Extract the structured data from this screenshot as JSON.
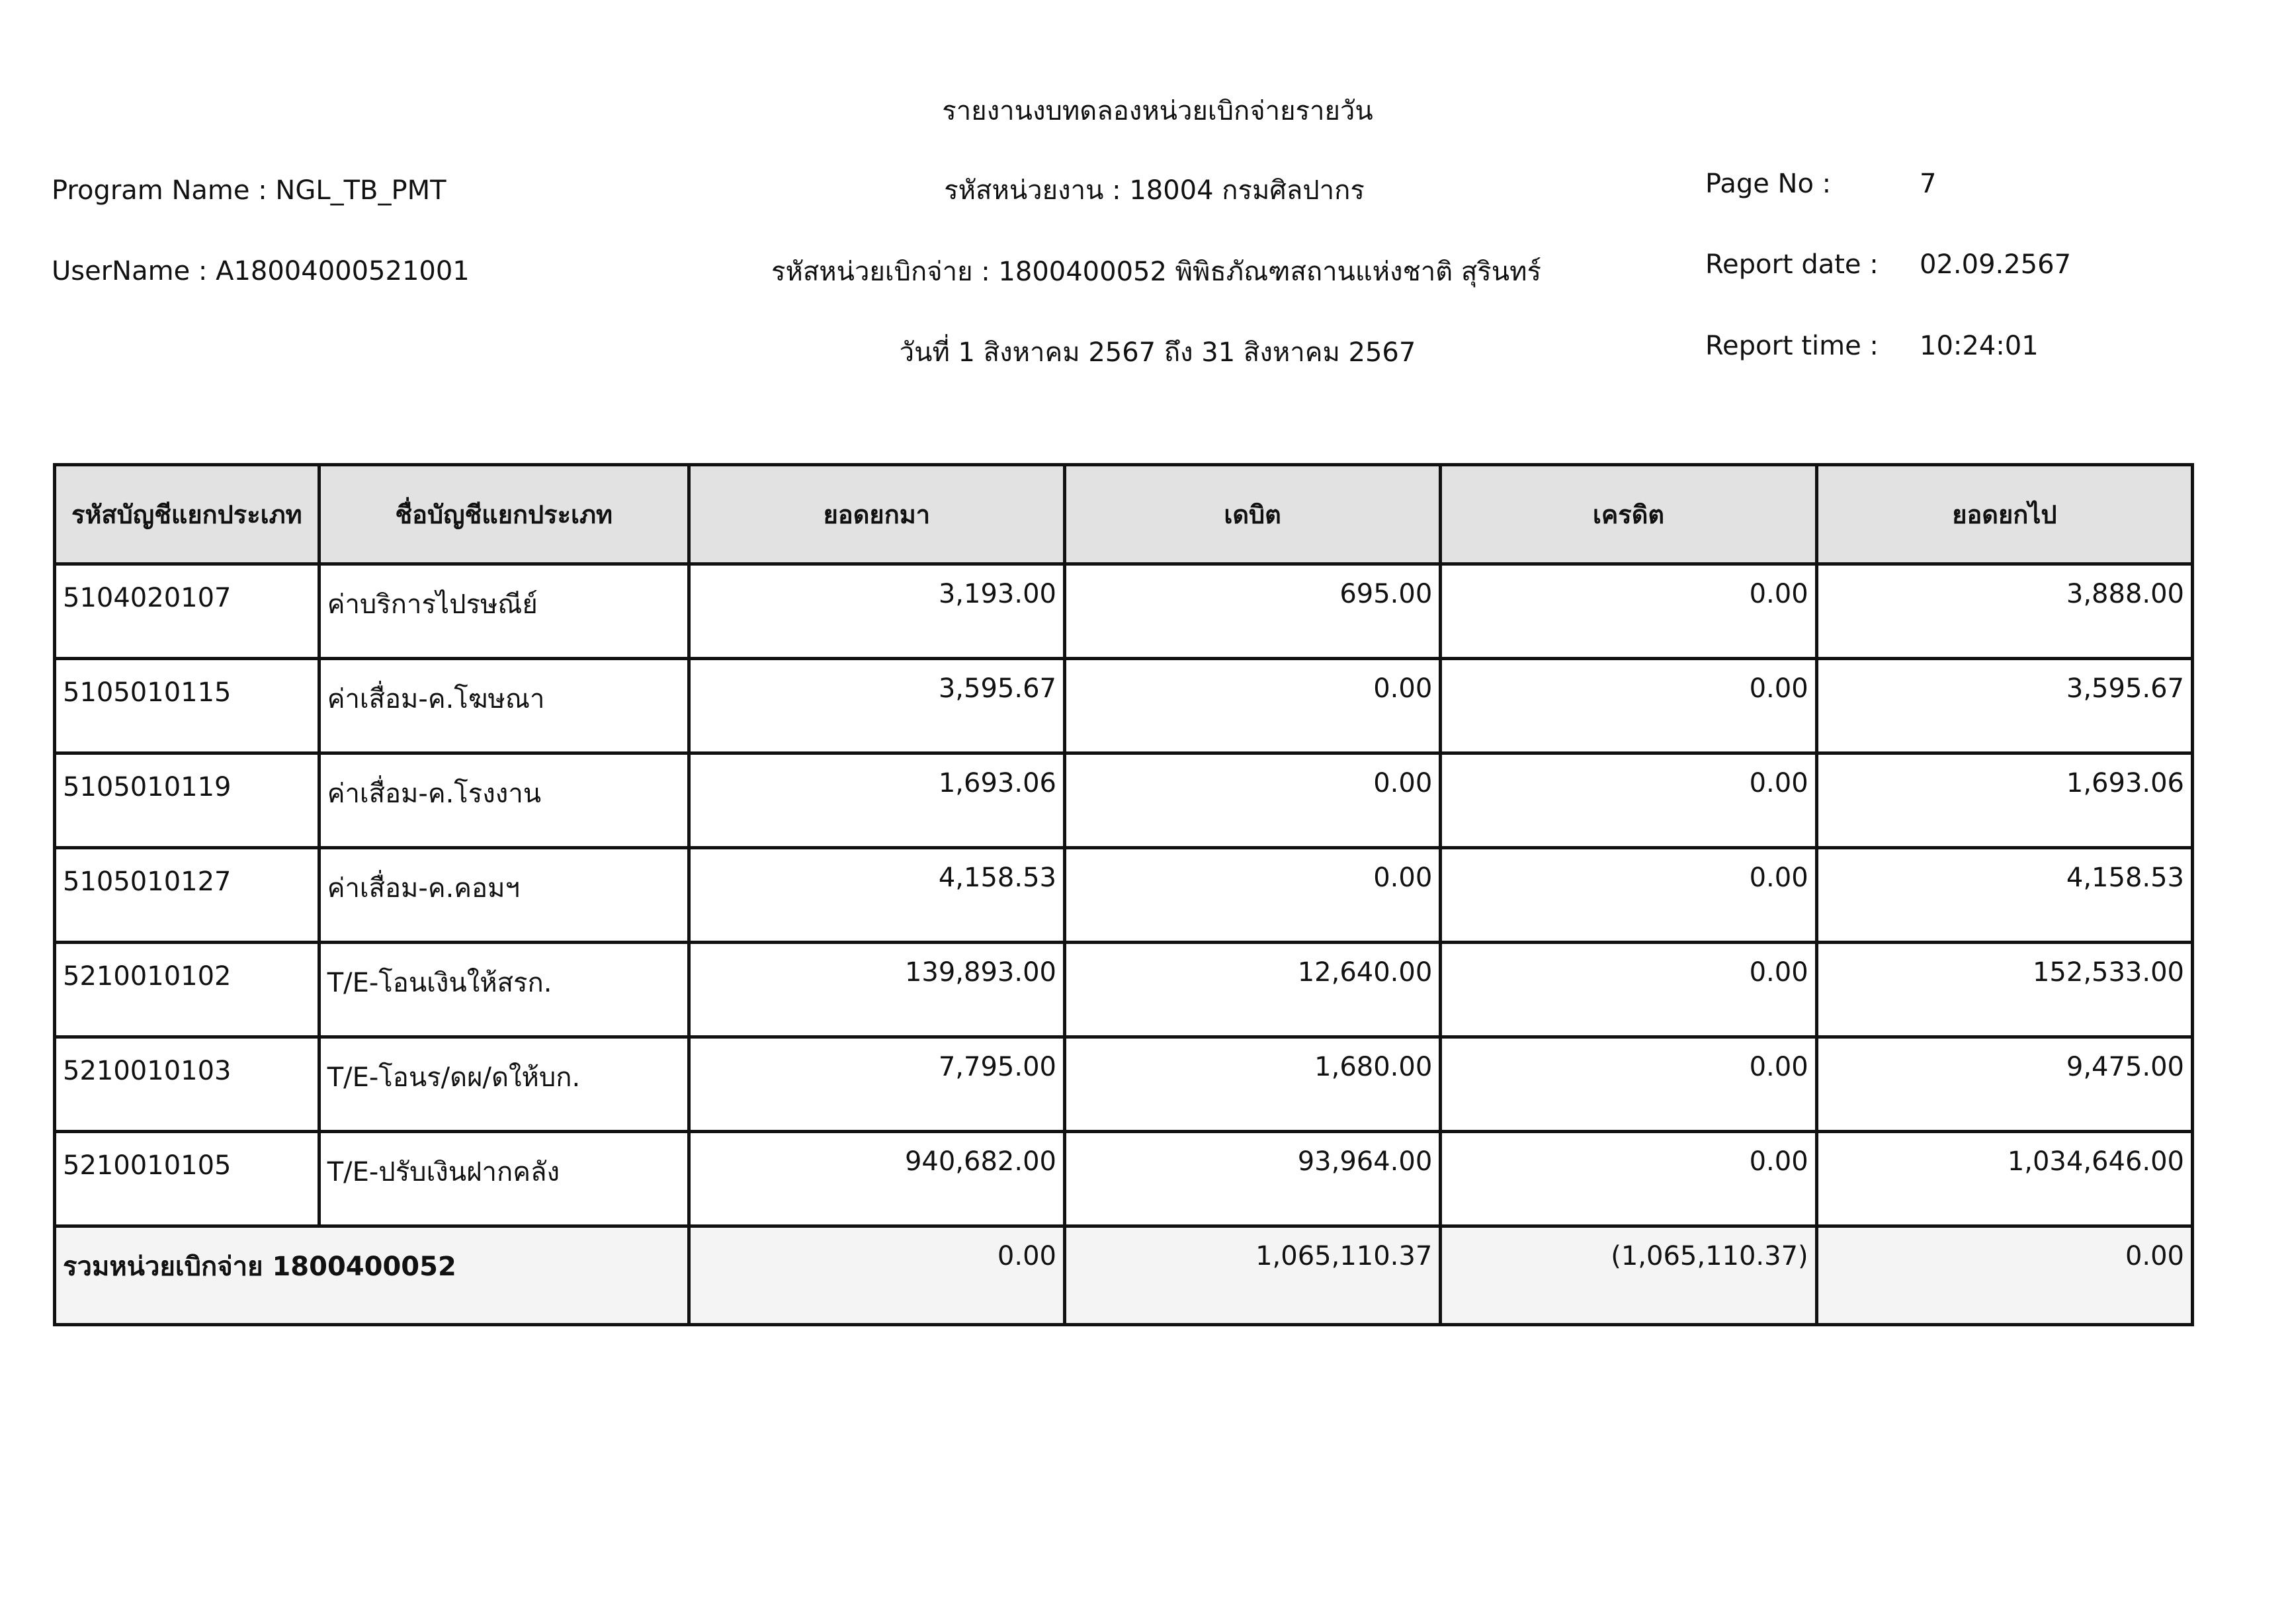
{
  "header": {
    "title": "รายงานงบทดลองหน่วยเบิกจ่ายรายวัน",
    "program_name": "Program Name : NGL_TB_PMT",
    "user_name": "UserName : A18004000521001",
    "agency": "รหัสหน่วยงาน : 18004 กรมศิลปากร",
    "disbursing_unit": "รหัสหน่วยเบิกจ่าย : 1800400052 พิพิธภัณฑสถานแห่งชาติ สุรินทร์",
    "date_range": "วันที่ 1 สิงหาคม 2567 ถึง 31 สิงหาคม 2567",
    "page_no_label": "Page No :",
    "page_no": "7",
    "report_date_label": "Report date :",
    "report_date": "02.09.2567",
    "report_time_label": "Report time :",
    "report_time": "10:24:01"
  },
  "table": {
    "columns": [
      "รหัสบัญชีแยกประเภท",
      "ชื่อบัญชีแยกประเภท",
      "ยอดยกมา",
      "เดบิต",
      "เครดิต",
      "ยอดยกไป"
    ],
    "rows": [
      [
        "5104020107",
        "ค่าบริการไปรษณีย์",
        "3,193.00",
        "695.00",
        "0.00",
        "3,888.00"
      ],
      [
        "5105010115",
        "ค่าเสื่อม-ค.โฆษณา",
        "3,595.67",
        "0.00",
        "0.00",
        "3,595.67"
      ],
      [
        "5105010119",
        "ค่าเสื่อม-ค.โรงงาน",
        "1,693.06",
        "0.00",
        "0.00",
        "1,693.06"
      ],
      [
        "5105010127",
        "ค่าเสื่อม-ค.คอมฯ",
        "4,158.53",
        "0.00",
        "0.00",
        "4,158.53"
      ],
      [
        "5210010102",
        "T/E-โอนเงินให้สรก.",
        "139,893.00",
        "12,640.00",
        "0.00",
        "152,533.00"
      ],
      [
        "5210010103",
        "T/E-โอนร/ดผ/ดให้บก.",
        "7,795.00",
        "1,680.00",
        "0.00",
        "9,475.00"
      ],
      [
        "5210010105",
        "T/E-ปรับเงินฝากคลัง",
        "940,682.00",
        "93,964.00",
        "0.00",
        "1,034,646.00"
      ]
    ],
    "total": {
      "label": "รวมหน่วยเบิกจ่าย 1800400052",
      "values": [
        "0.00",
        "1,065,110.37",
        "(1,065,110.37)",
        "0.00"
      ]
    }
  }
}
